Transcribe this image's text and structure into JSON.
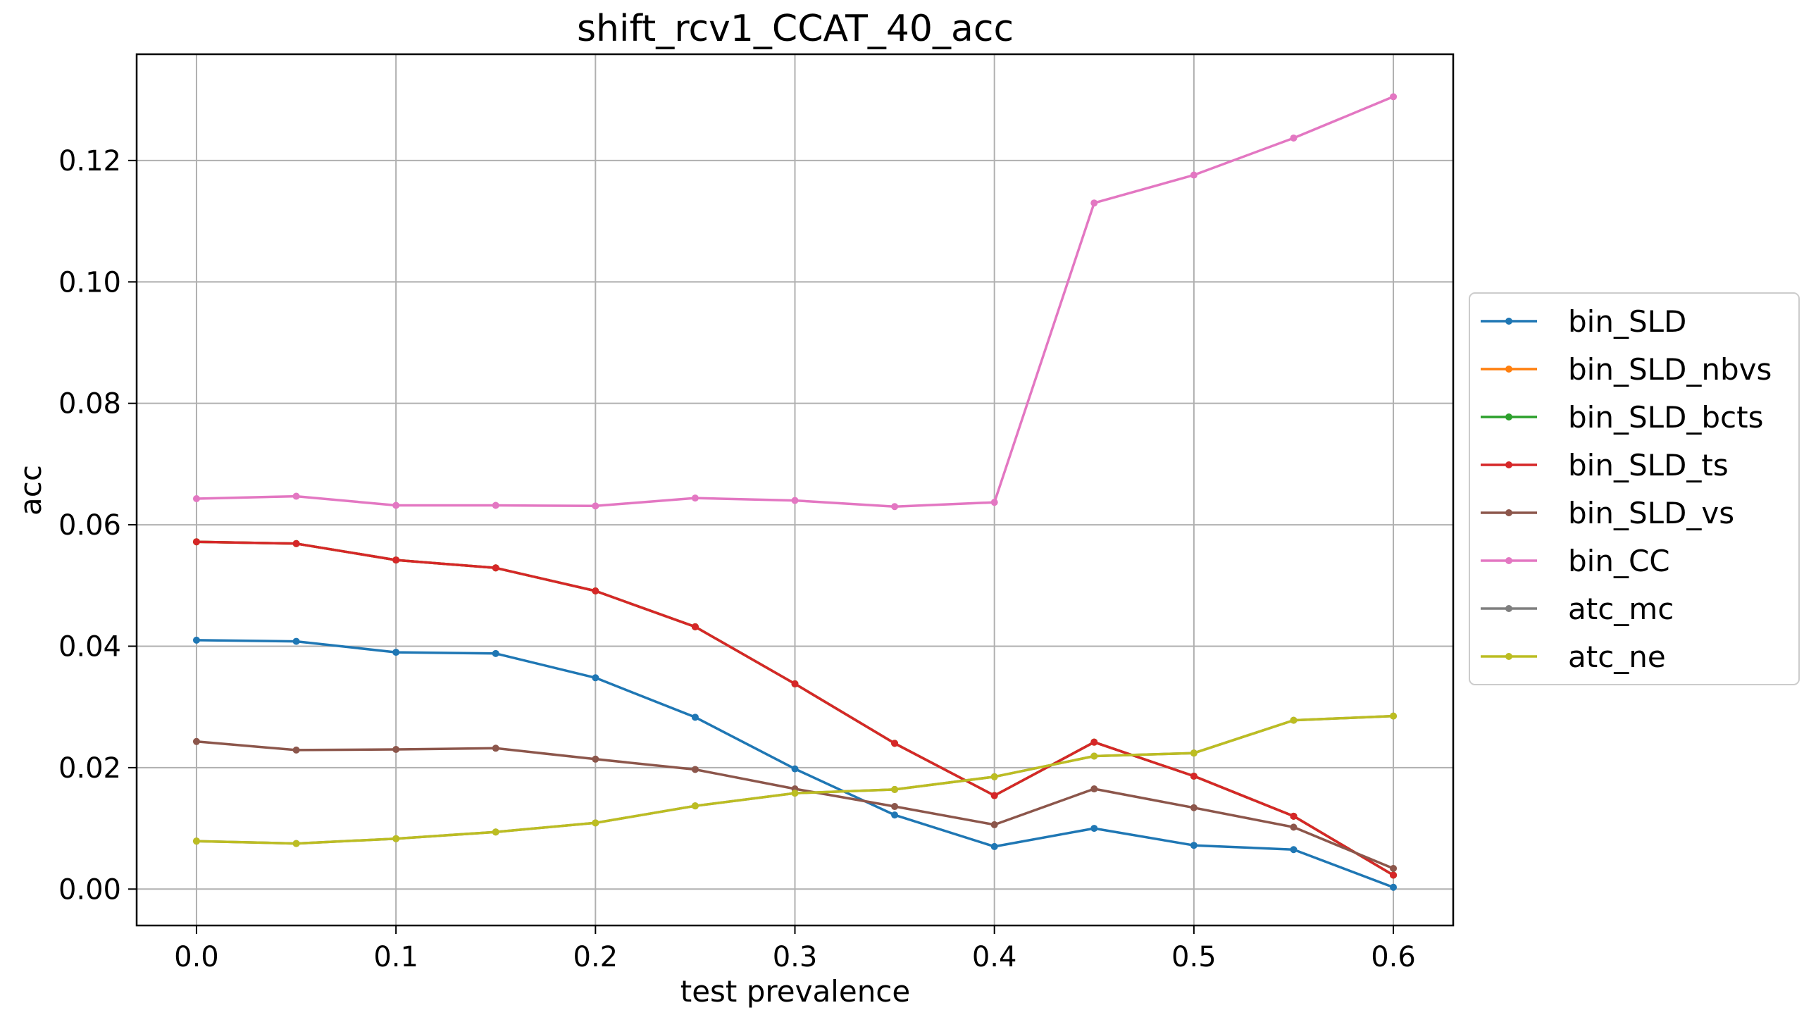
{
  "chart_data": {
    "type": "line",
    "title": "shift_rcv1_CCAT_40_acc",
    "xlabel": "test prevalence",
    "ylabel": "acc",
    "xlim": [
      -0.03,
      0.63
    ],
    "ylim": [
      -0.006,
      0.1375
    ],
    "x_ticks": [
      "0.0",
      "0.1",
      "0.2",
      "0.3",
      "0.4",
      "0.5",
      "0.6"
    ],
    "y_ticks": [
      "0.00",
      "0.02",
      "0.04",
      "0.06",
      "0.08",
      "0.10",
      "0.12"
    ],
    "grid": true,
    "legend_position": "outside-right",
    "x": [
      0.0,
      0.05,
      0.1,
      0.15,
      0.2,
      0.25,
      0.3,
      0.35,
      0.4,
      0.45,
      0.5,
      0.55,
      0.6
    ],
    "series": [
      {
        "name": "bin_SLD",
        "color": "#1f77b4",
        "values": [
          0.041,
          0.0408,
          0.039,
          0.0388,
          0.0348,
          0.0283,
          0.0198,
          0.0122,
          0.007,
          0.01,
          0.0072,
          0.0065,
          0.0003
        ]
      },
      {
        "name": "bin_SLD_nbvs",
        "color": "#ff7f0e",
        "values": [
          0.0572,
          0.0569,
          0.0542,
          0.0529,
          0.0491,
          0.0432,
          0.0338,
          0.024,
          0.0154,
          0.0242,
          0.0186,
          0.012,
          0.0023
        ]
      },
      {
        "name": "bin_SLD_bcts",
        "color": "#2ca02c",
        "values": [
          0.0572,
          0.0569,
          0.0542,
          0.0529,
          0.0491,
          0.0432,
          0.0338,
          0.024,
          0.0154,
          0.0242,
          0.0186,
          0.012,
          0.0023
        ]
      },
      {
        "name": "bin_SLD_ts",
        "color": "#d62728",
        "values": [
          0.0572,
          0.0569,
          0.0542,
          0.0529,
          0.0491,
          0.0432,
          0.0338,
          0.024,
          0.0154,
          0.0242,
          0.0186,
          0.012,
          0.0023
        ]
      },
      {
        "name": "bin_SLD_vs",
        "color": "#8c564b",
        "values": [
          0.0243,
          0.0229,
          0.023,
          0.0232,
          0.0214,
          0.0197,
          0.0165,
          0.0136,
          0.0106,
          0.0165,
          0.0134,
          0.0102,
          0.0034
        ]
      },
      {
        "name": "bin_CC",
        "color": "#e377c2",
        "values": [
          0.0643,
          0.0647,
          0.0632,
          0.0632,
          0.0631,
          0.0644,
          0.064,
          0.063,
          0.0637,
          0.113,
          0.1176,
          0.1237,
          0.1305
        ]
      },
      {
        "name": "atc_mc",
        "color": "#7f7f7f",
        "values": [
          0.0079,
          0.0075,
          0.0083,
          0.0094,
          0.0109,
          0.0137,
          0.0158,
          0.0164,
          0.0185,
          0.0219,
          0.0224,
          0.0278,
          0.0285
        ]
      },
      {
        "name": "atc_ne",
        "color": "#bcbd22",
        "values": [
          0.0079,
          0.0075,
          0.0083,
          0.0094,
          0.0109,
          0.0137,
          0.0158,
          0.0164,
          0.0185,
          0.0219,
          0.0224,
          0.0278,
          0.0285
        ]
      }
    ]
  }
}
